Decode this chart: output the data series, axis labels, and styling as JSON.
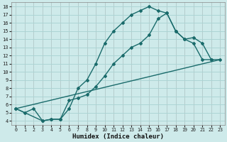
{
  "title": "",
  "xlabel": "Humidex (Indice chaleur)",
  "bg_color": "#ceeaea",
  "line_color": "#1a6b6b",
  "grid_color": "#aad4d4",
  "xlim": [
    -0.5,
    23.5
  ],
  "ylim": [
    3.5,
    18.5
  ],
  "xticks": [
    0,
    1,
    2,
    3,
    4,
    5,
    6,
    7,
    8,
    9,
    10,
    11,
    12,
    13,
    14,
    15,
    16,
    17,
    18,
    19,
    20,
    21,
    22,
    23
  ],
  "yticks": [
    4,
    5,
    6,
    7,
    8,
    9,
    10,
    11,
    12,
    13,
    14,
    15,
    16,
    17,
    18
  ],
  "curve1_x": [
    0,
    1,
    2,
    3,
    4,
    5,
    6,
    7,
    8,
    9,
    10,
    11,
    12,
    13,
    14,
    15,
    16,
    17,
    18,
    19,
    20,
    21,
    22
  ],
  "curve1_y": [
    5.5,
    5.0,
    5.5,
    4.0,
    4.2,
    4.2,
    5.5,
    8.0,
    9.0,
    11.0,
    13.5,
    15.0,
    16.0,
    17.0,
    17.5,
    18.0,
    17.5,
    17.2,
    15.0,
    14.0,
    13.5,
    11.5,
    11.5
  ],
  "curve2_x": [
    0,
    3,
    4,
    5,
    6,
    7,
    8,
    9,
    10,
    11,
    12,
    13,
    14,
    15,
    16,
    17,
    18,
    19,
    20,
    21,
    22,
    23
  ],
  "curve2_y": [
    5.5,
    4.0,
    4.2,
    4.2,
    6.5,
    6.8,
    7.2,
    8.2,
    9.5,
    11.0,
    12.0,
    13.0,
    13.5,
    14.5,
    16.5,
    17.2,
    15.0,
    14.0,
    14.2,
    13.5,
    11.5,
    11.5
  ],
  "curve3_x": [
    0,
    23
  ],
  "curve3_y": [
    5.5,
    11.5
  ]
}
